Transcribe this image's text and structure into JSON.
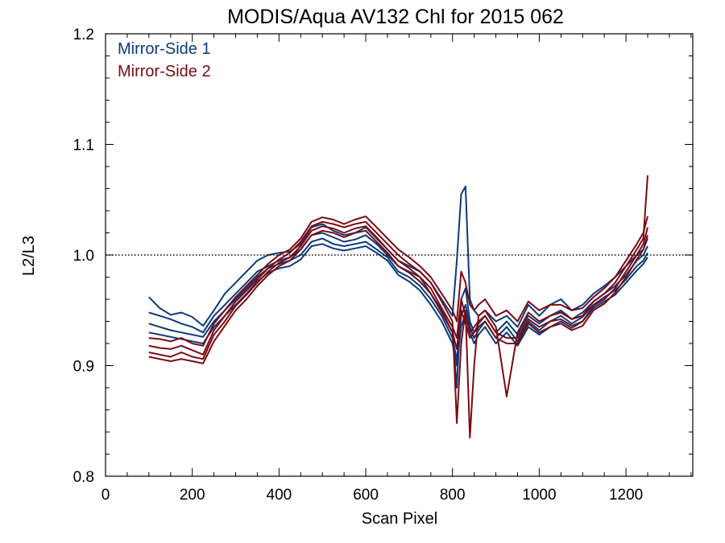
{
  "chart_data": {
    "type": "line",
    "title": "MODIS/Aqua AV132 Chl for 2015 062",
    "xlabel": "Scan Pixel",
    "ylabel": "L2/L3",
    "xlim": [
      0,
      1354
    ],
    "ylim": [
      0.8,
      1.2
    ],
    "x_ticks": [
      0,
      200,
      400,
      600,
      800,
      1000,
      1200
    ],
    "x_tick_labels": [
      "0",
      "200",
      "400",
      "600",
      "800",
      "1000",
      "1200"
    ],
    "y_ticks": [
      0.8,
      0.9,
      1.0,
      1.1,
      1.2
    ],
    "y_tick_labels": [
      "0.8",
      "0.9",
      "1.0",
      "1.1",
      "1.2"
    ],
    "reference_line": {
      "y": 1.0,
      "style": "dotted"
    },
    "legend": {
      "placement": "top-left",
      "entries": [
        "Mirror-Side 1",
        "Mirror-Side 2"
      ]
    },
    "x": [
      100,
      125,
      150,
      175,
      200,
      225,
      250,
      275,
      300,
      325,
      350,
      375,
      400,
      425,
      450,
      475,
      500,
      525,
      550,
      575,
      600,
      625,
      650,
      675,
      700,
      725,
      750,
      775,
      800,
      810,
      820,
      830,
      840,
      850,
      860,
      875,
      900,
      925,
      950,
      975,
      1000,
      1025,
      1050,
      1075,
      1100,
      1125,
      1150,
      1175,
      1200,
      1225,
      1240,
      1250
    ],
    "series": [
      {
        "name": "Mirror-Side 1",
        "color": "#0b3a7a",
        "values": [
          0.962,
          0.952,
          0.946,
          0.948,
          0.944,
          0.936,
          0.95,
          0.965,
          0.975,
          0.985,
          0.995,
          1.0,
          1.002,
          1.003,
          1.01,
          1.025,
          1.028,
          1.022,
          1.018,
          1.02,
          1.025,
          1.015,
          1.005,
          0.995,
          0.99,
          0.985,
          0.975,
          0.96,
          0.945,
          0.995,
          1.055,
          1.062,
          0.96,
          0.95,
          0.945,
          0.95,
          0.94,
          0.945,
          0.935,
          0.955,
          0.945,
          0.955,
          0.96,
          0.95,
          0.955,
          0.965,
          0.972,
          0.98,
          0.99,
          1.0,
          1.005,
          1.015
        ]
      },
      {
        "name": "Mirror-Side 1",
        "color": "#0b3a7a",
        "values": [
          0.948,
          0.945,
          0.942,
          0.938,
          0.935,
          0.93,
          0.945,
          0.955,
          0.965,
          0.975,
          0.985,
          0.99,
          0.995,
          0.998,
          1.005,
          1.018,
          1.02,
          1.016,
          1.012,
          1.014,
          1.018,
          1.01,
          1.0,
          0.99,
          0.985,
          0.98,
          0.965,
          0.95,
          0.93,
          0.88,
          0.96,
          0.97,
          0.94,
          0.93,
          0.938,
          0.945,
          0.93,
          0.94,
          0.928,
          0.945,
          0.938,
          0.945,
          0.95,
          0.942,
          0.948,
          0.958,
          0.965,
          0.972,
          0.982,
          0.995,
          1.0,
          1.008
        ]
      },
      {
        "name": "Mirror-Side 1",
        "color": "#0b3a7a",
        "values": [
          0.938,
          0.935,
          0.932,
          0.93,
          0.928,
          0.926,
          0.94,
          0.95,
          0.96,
          0.97,
          0.98,
          0.988,
          0.992,
          0.995,
          1.0,
          1.012,
          1.015,
          1.01,
          1.008,
          1.01,
          1.012,
          1.005,
          0.998,
          0.985,
          0.98,
          0.972,
          0.96,
          0.945,
          0.925,
          0.905,
          0.945,
          0.955,
          0.935,
          0.925,
          0.932,
          0.94,
          0.925,
          0.935,
          0.922,
          0.94,
          0.932,
          0.94,
          0.945,
          0.938,
          0.944,
          0.955,
          0.962,
          0.968,
          0.978,
          0.99,
          0.995,
          1.002
        ]
      },
      {
        "name": "Mirror-Side 1",
        "color": "#0b3a7a",
        "values": [
          0.93,
          0.928,
          0.926,
          0.924,
          0.922,
          0.92,
          0.935,
          0.945,
          0.955,
          0.965,
          0.976,
          0.984,
          0.988,
          0.99,
          0.996,
          1.008,
          1.01,
          1.006,
          1.004,
          1.006,
          1.008,
          1.002,
          0.995,
          0.982,
          0.976,
          0.968,
          0.955,
          0.94,
          0.92,
          0.9,
          0.935,
          0.948,
          0.93,
          0.92,
          0.928,
          0.935,
          0.92,
          0.93,
          0.918,
          0.935,
          0.928,
          0.935,
          0.94,
          0.934,
          0.94,
          0.952,
          0.958,
          0.964,
          0.975,
          0.986,
          0.992,
          0.998
        ]
      },
      {
        "name": "Mirror-Side 2",
        "color": "#7a0a12",
        "values": [
          0.925,
          0.924,
          0.922,
          0.925,
          0.92,
          0.918,
          0.938,
          0.95,
          0.962,
          0.972,
          0.982,
          0.992,
          1.0,
          1.005,
          1.015,
          1.03,
          1.034,
          1.032,
          1.028,
          1.032,
          1.035,
          1.025,
          1.015,
          1.005,
          0.998,
          0.99,
          0.98,
          0.965,
          0.95,
          0.94,
          0.985,
          0.975,
          0.955,
          0.95,
          0.955,
          0.96,
          0.945,
          0.95,
          0.94,
          0.958,
          0.95,
          0.955,
          0.955,
          0.95,
          0.952,
          0.962,
          0.97,
          0.98,
          0.995,
          1.01,
          1.02,
          1.035
        ]
      },
      {
        "name": "Mirror-Side 2",
        "color": "#7a0a12",
        "values": [
          0.918,
          0.916,
          0.915,
          0.918,
          0.914,
          0.91,
          0.932,
          0.945,
          0.958,
          0.968,
          0.978,
          0.988,
          0.996,
          1.002,
          1.012,
          1.026,
          1.03,
          1.028,
          1.025,
          1.028,
          1.03,
          1.02,
          1.01,
          1.0,
          0.992,
          0.985,
          0.975,
          0.958,
          0.94,
          0.848,
          0.92,
          0.95,
          0.835,
          0.9,
          0.945,
          0.95,
          0.935,
          0.872,
          0.93,
          0.948,
          0.94,
          0.945,
          0.948,
          0.942,
          0.945,
          0.958,
          0.965,
          0.975,
          0.99,
          1.005,
          1.015,
          1.072
        ]
      },
      {
        "name": "Mirror-Side 2",
        "color": "#7a0a12",
        "values": [
          0.912,
          0.91,
          0.908,
          0.912,
          0.908,
          0.906,
          0.928,
          0.94,
          0.954,
          0.964,
          0.975,
          0.985,
          0.993,
          0.998,
          1.008,
          1.022,
          1.026,
          1.024,
          1.02,
          1.024,
          1.026,
          1.016,
          1.005,
          0.995,
          0.988,
          0.98,
          0.97,
          0.952,
          0.935,
          0.925,
          0.96,
          0.945,
          0.93,
          0.935,
          0.94,
          0.945,
          0.93,
          0.925,
          0.925,
          0.942,
          0.935,
          0.94,
          0.942,
          0.936,
          0.94,
          0.954,
          0.96,
          0.97,
          0.985,
          1.0,
          1.01,
          1.025
        ]
      },
      {
        "name": "Mirror-Side 2",
        "color": "#7a0a12",
        "values": [
          0.908,
          0.906,
          0.904,
          0.906,
          0.904,
          0.902,
          0.922,
          0.936,
          0.95,
          0.96,
          0.972,
          0.982,
          0.99,
          0.995,
          1.005,
          1.018,
          1.022,
          1.02,
          1.016,
          1.02,
          1.022,
          1.012,
          1.002,
          0.99,
          0.984,
          0.976,
          0.965,
          0.948,
          0.93,
          0.915,
          0.95,
          0.938,
          0.925,
          0.93,
          0.935,
          0.94,
          0.925,
          0.92,
          0.92,
          0.938,
          0.93,
          0.935,
          0.938,
          0.932,
          0.936,
          0.95,
          0.956,
          0.966,
          0.98,
          0.996,
          1.005,
          1.018
        ]
      }
    ]
  }
}
